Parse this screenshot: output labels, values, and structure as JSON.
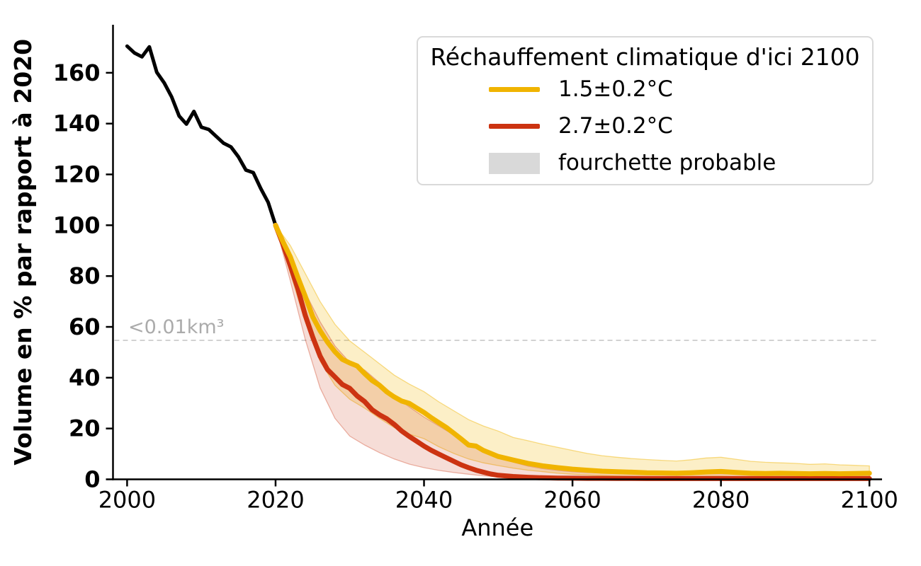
{
  "chart_data": {
    "type": "line",
    "title": "",
    "xlabel": "Année",
    "ylabel": "Volume en % par rapport à 2020",
    "xlim": [
      1998.1,
      2101.7
    ],
    "ylim": [
      0,
      178.9
    ],
    "xticks": [
      2000,
      2020,
      2040,
      2060,
      2080,
      2100
    ],
    "yticks": [
      0,
      20,
      40,
      60,
      80,
      100,
      120,
      140,
      160
    ],
    "grid": false,
    "threshold": {
      "value": 54.7,
      "label": "<0.01km³",
      "line_color": "#c8c8c8",
      "text_color": "#ababab"
    },
    "legend": {
      "position": "upper right",
      "title": "Réchauffement climatique d'ici 2100",
      "entries": [
        {
          "label": "1.5±0.2°C",
          "swatch": "line",
          "color": "#f0b400"
        },
        {
          "label": "2.7±0.2°C",
          "swatch": "line",
          "color": "#cc3311"
        },
        {
          "label": "fourchette probable",
          "swatch": "patch",
          "color": "#d9d9d9"
        }
      ]
    },
    "series": [
      {
        "name": "band-1.5C-likely-range",
        "type": "band",
        "color": "#f0b400",
        "fill_opacity": 0.22,
        "edge_opacity": 0.45,
        "x": [
          2020,
          2022,
          2024,
          2026,
          2028,
          2030,
          2032,
          2034,
          2036,
          2038,
          2040,
          2042,
          2044,
          2046,
          2048,
          2050,
          2052,
          2054,
          2056,
          2058,
          2060,
          2062,
          2064,
          2066,
          2068,
          2070,
          2072,
          2074,
          2076,
          2078,
          2080,
          2082,
          2084,
          2086,
          2088,
          2090,
          2092,
          2094,
          2096,
          2098,
          2100
        ],
        "upper": [
          100,
          92,
          81,
          70,
          61,
          54.5,
          50,
          45.5,
          41,
          37.5,
          34.5,
          30.5,
          27,
          23.5,
          21,
          19,
          16.5,
          15.2,
          13.8,
          12.6,
          11.4,
          10.2,
          9.3,
          8.7,
          8.2,
          7.8,
          7.5,
          7.2,
          7.7,
          8.4,
          8.7,
          7.9,
          7.1,
          6.7,
          6.5,
          6.3,
          5.9,
          6.1,
          5.7,
          5.5,
          5.3
        ],
        "lower": [
          100,
          81,
          62,
          46.5,
          37,
          31.5,
          28,
          24,
          20.3,
          17.8,
          16,
          12.8,
          10.2,
          8,
          6.5,
          5.4,
          4.4,
          3.6,
          3,
          2.4,
          2,
          1.7,
          1.5,
          1.3,
          1.2,
          1.1,
          1,
          1,
          1.1,
          1.2,
          1.2,
          1,
          0.9,
          0.9,
          0.9,
          0.8,
          0.8,
          0.8,
          0.8,
          0.8,
          0.8
        ]
      },
      {
        "name": "band-2.7C-likely-range",
        "type": "band",
        "color": "#cc3311",
        "fill_opacity": 0.17,
        "edge_opacity": 0.35,
        "x": [
          2020,
          2022,
          2024,
          2026,
          2028,
          2030,
          2032,
          2034,
          2036,
          2038,
          2040,
          2042,
          2044,
          2046,
          2048,
          2050,
          2052,
          2054,
          2056,
          2058,
          2060,
          2062,
          2064,
          2066,
          2068,
          2070,
          2072,
          2074,
          2076,
          2078,
          2080,
          2082,
          2084,
          2086,
          2088,
          2090,
          2092,
          2094,
          2096,
          2098,
          2100
        ],
        "upper": [
          100,
          89,
          73.5,
          62,
          52.5,
          46,
          43,
          38,
          33,
          28.5,
          24.5,
          21,
          17.5,
          14,
          11.2,
          9,
          6.8,
          5.2,
          4.2,
          3.5,
          3,
          2.7,
          2.5,
          2.4,
          2.3,
          2.2,
          2.2,
          2.1,
          2.1,
          2.2,
          2.2,
          2.1,
          2,
          2,
          2,
          2,
          1.9,
          1.9,
          1.9,
          1.9,
          1.9
        ],
        "lower": [
          100,
          78,
          55,
          36,
          24,
          17,
          13.5,
          10.5,
          8,
          6,
          4.6,
          3.5,
          2.7,
          2,
          1.4,
          1,
          0.7,
          0.5,
          0.4,
          0.3,
          0.25,
          0.2,
          0.2,
          0.2,
          0.2,
          0.2,
          0.2,
          0.2,
          0.2,
          0.2,
          0.2,
          0.2,
          0.2,
          0.2,
          0.2,
          0.2,
          0.2,
          0.2,
          0.2,
          0.2,
          0.2
        ]
      },
      {
        "name": "observations",
        "type": "line",
        "color": "#000000",
        "width": 5,
        "x": [
          2000,
          2001,
          2002,
          2003,
          2004,
          2005,
          2006,
          2007,
          2008,
          2009,
          2010,
          2011,
          2012,
          2013,
          2014,
          2015,
          2016,
          2017,
          2018,
          2019,
          2020
        ],
        "y": [
          170.5,
          167.8,
          166.3,
          170.2,
          160.2,
          156,
          150.5,
          143,
          139.8,
          144.8,
          138.6,
          137.7,
          135,
          132.3,
          130.8,
          126.9,
          121.7,
          120.7,
          114.5,
          109,
          100
        ]
      },
      {
        "name": "projection-2.7C",
        "type": "line",
        "color": "#cc3311",
        "width": 7,
        "x": [
          2020,
          2021,
          2022,
          2023,
          2024,
          2025,
          2026,
          2027,
          2028,
          2029,
          2030,
          2031,
          2032,
          2033,
          2034,
          2035,
          2036,
          2037,
          2038,
          2039,
          2040,
          2041,
          2042,
          2043,
          2044,
          2045,
          2046,
          2047,
          2048,
          2049,
          2050,
          2052,
          2054,
          2056,
          2058,
          2060,
          2062,
          2064,
          2066,
          2068,
          2070,
          2072,
          2074,
          2076,
          2078,
          2080,
          2082,
          2084,
          2086,
          2088,
          2090,
          2092,
          2094,
          2096,
          2098,
          2100
        ],
        "y": [
          100,
          92.5,
          84,
          75,
          64.5,
          56,
          48.5,
          43.2,
          40.3,
          37.3,
          35.8,
          32.8,
          30.6,
          27.4,
          25.4,
          23.8,
          21.6,
          19,
          16.9,
          15,
          13.1,
          11.4,
          9.9,
          8.5,
          7.1,
          5.7,
          4.6,
          3.6,
          2.8,
          2.1,
          1.6,
          1.1,
          0.8,
          0.6,
          0.5,
          0.45,
          0.4,
          0.4,
          0.35,
          0.35,
          0.3,
          0.3,
          0.3,
          0.3,
          0.3,
          0.3,
          0.3,
          0.3,
          0.3,
          0.3,
          0.3,
          0.3,
          0.3,
          0.3,
          0.3,
          0.3
        ]
      },
      {
        "name": "projection-1.5C",
        "type": "line",
        "color": "#f0b400",
        "width": 7,
        "x": [
          2020,
          2021,
          2022,
          2023,
          2024,
          2025,
          2026,
          2027,
          2028,
          2029,
          2030,
          2031,
          2032,
          2033,
          2034,
          2035,
          2036,
          2037,
          2038,
          2039,
          2040,
          2041,
          2042,
          2043,
          2044,
          2045,
          2046,
          2047,
          2048,
          2049,
          2050,
          2052,
          2054,
          2056,
          2058,
          2060,
          2062,
          2064,
          2066,
          2068,
          2070,
          2072,
          2074,
          2076,
          2078,
          2080,
          2082,
          2084,
          2086,
          2088,
          2090,
          2092,
          2094,
          2096,
          2098,
          2100
        ],
        "y": [
          100,
          93.5,
          87.5,
          79.5,
          72,
          64,
          58.5,
          54,
          50.2,
          47.2,
          45.8,
          44.6,
          41.6,
          38.9,
          37,
          34.4,
          32.4,
          30.8,
          29.9,
          28.1,
          26.3,
          24.2,
          22.3,
          20.4,
          18.2,
          15.9,
          13.5,
          13.1,
          11.4,
          10.2,
          9,
          7.6,
          6.3,
          5.3,
          4.6,
          4,
          3.6,
          3.2,
          3,
          2.8,
          2.6,
          2.5,
          2.4,
          2.6,
          2.9,
          3.1,
          2.7,
          2.4,
          2.3,
          2.4,
          2.3,
          2.2,
          2.3,
          2.2,
          2.3,
          2.4
        ]
      }
    ]
  }
}
